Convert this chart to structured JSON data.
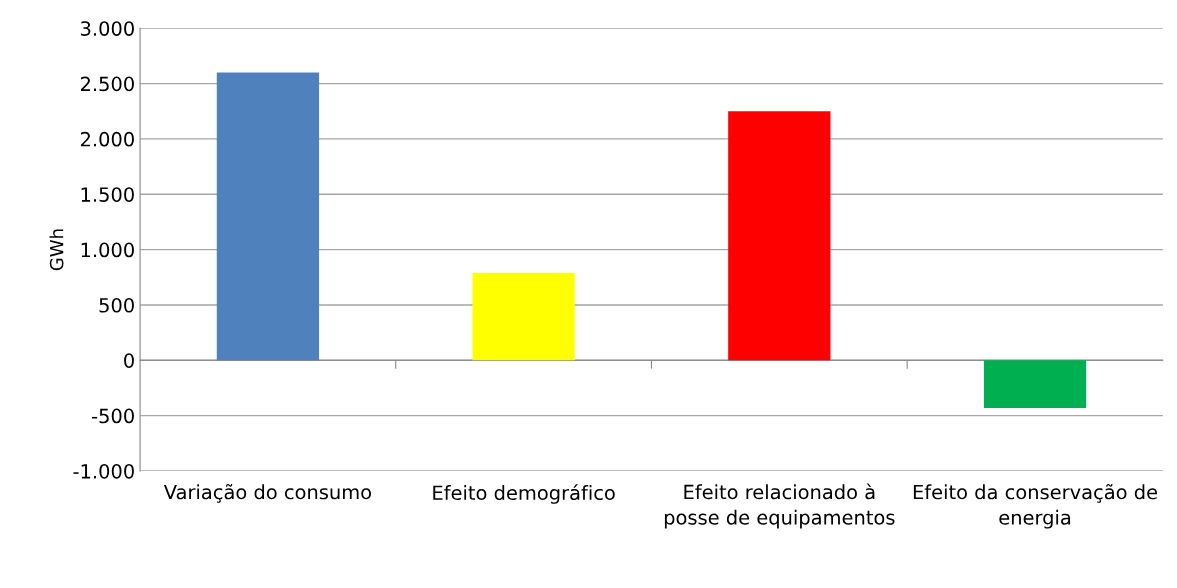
{
  "chart_data": {
    "type": "bar",
    "ylabel": "GWh",
    "categories": [
      "Variação do consumo",
      "Efeito demográfico",
      "Efeito relacionado à posse de equipamentos",
      "Efeito da conservação de energia"
    ],
    "values": [
      2600,
      790,
      2250,
      -430
    ],
    "colors": [
      "#4f81bd",
      "#ffff00",
      "#ff0000",
      "#00b050"
    ],
    "ylim": [
      -1000,
      3000
    ],
    "yticks": [
      {
        "value": -1000,
        "label": "-1.000"
      },
      {
        "value": -500,
        "label": "-500"
      },
      {
        "value": 0,
        "label": "0"
      },
      {
        "value": 500,
        "label": "500"
      },
      {
        "value": 1000,
        "label": "1.000"
      },
      {
        "value": 1500,
        "label": "1.500"
      },
      {
        "value": 2000,
        "label": "2.000"
      },
      {
        "value": 2500,
        "label": "2.500"
      },
      {
        "value": 3000,
        "label": "3.000"
      }
    ],
    "grid": "y",
    "legend": false
  }
}
